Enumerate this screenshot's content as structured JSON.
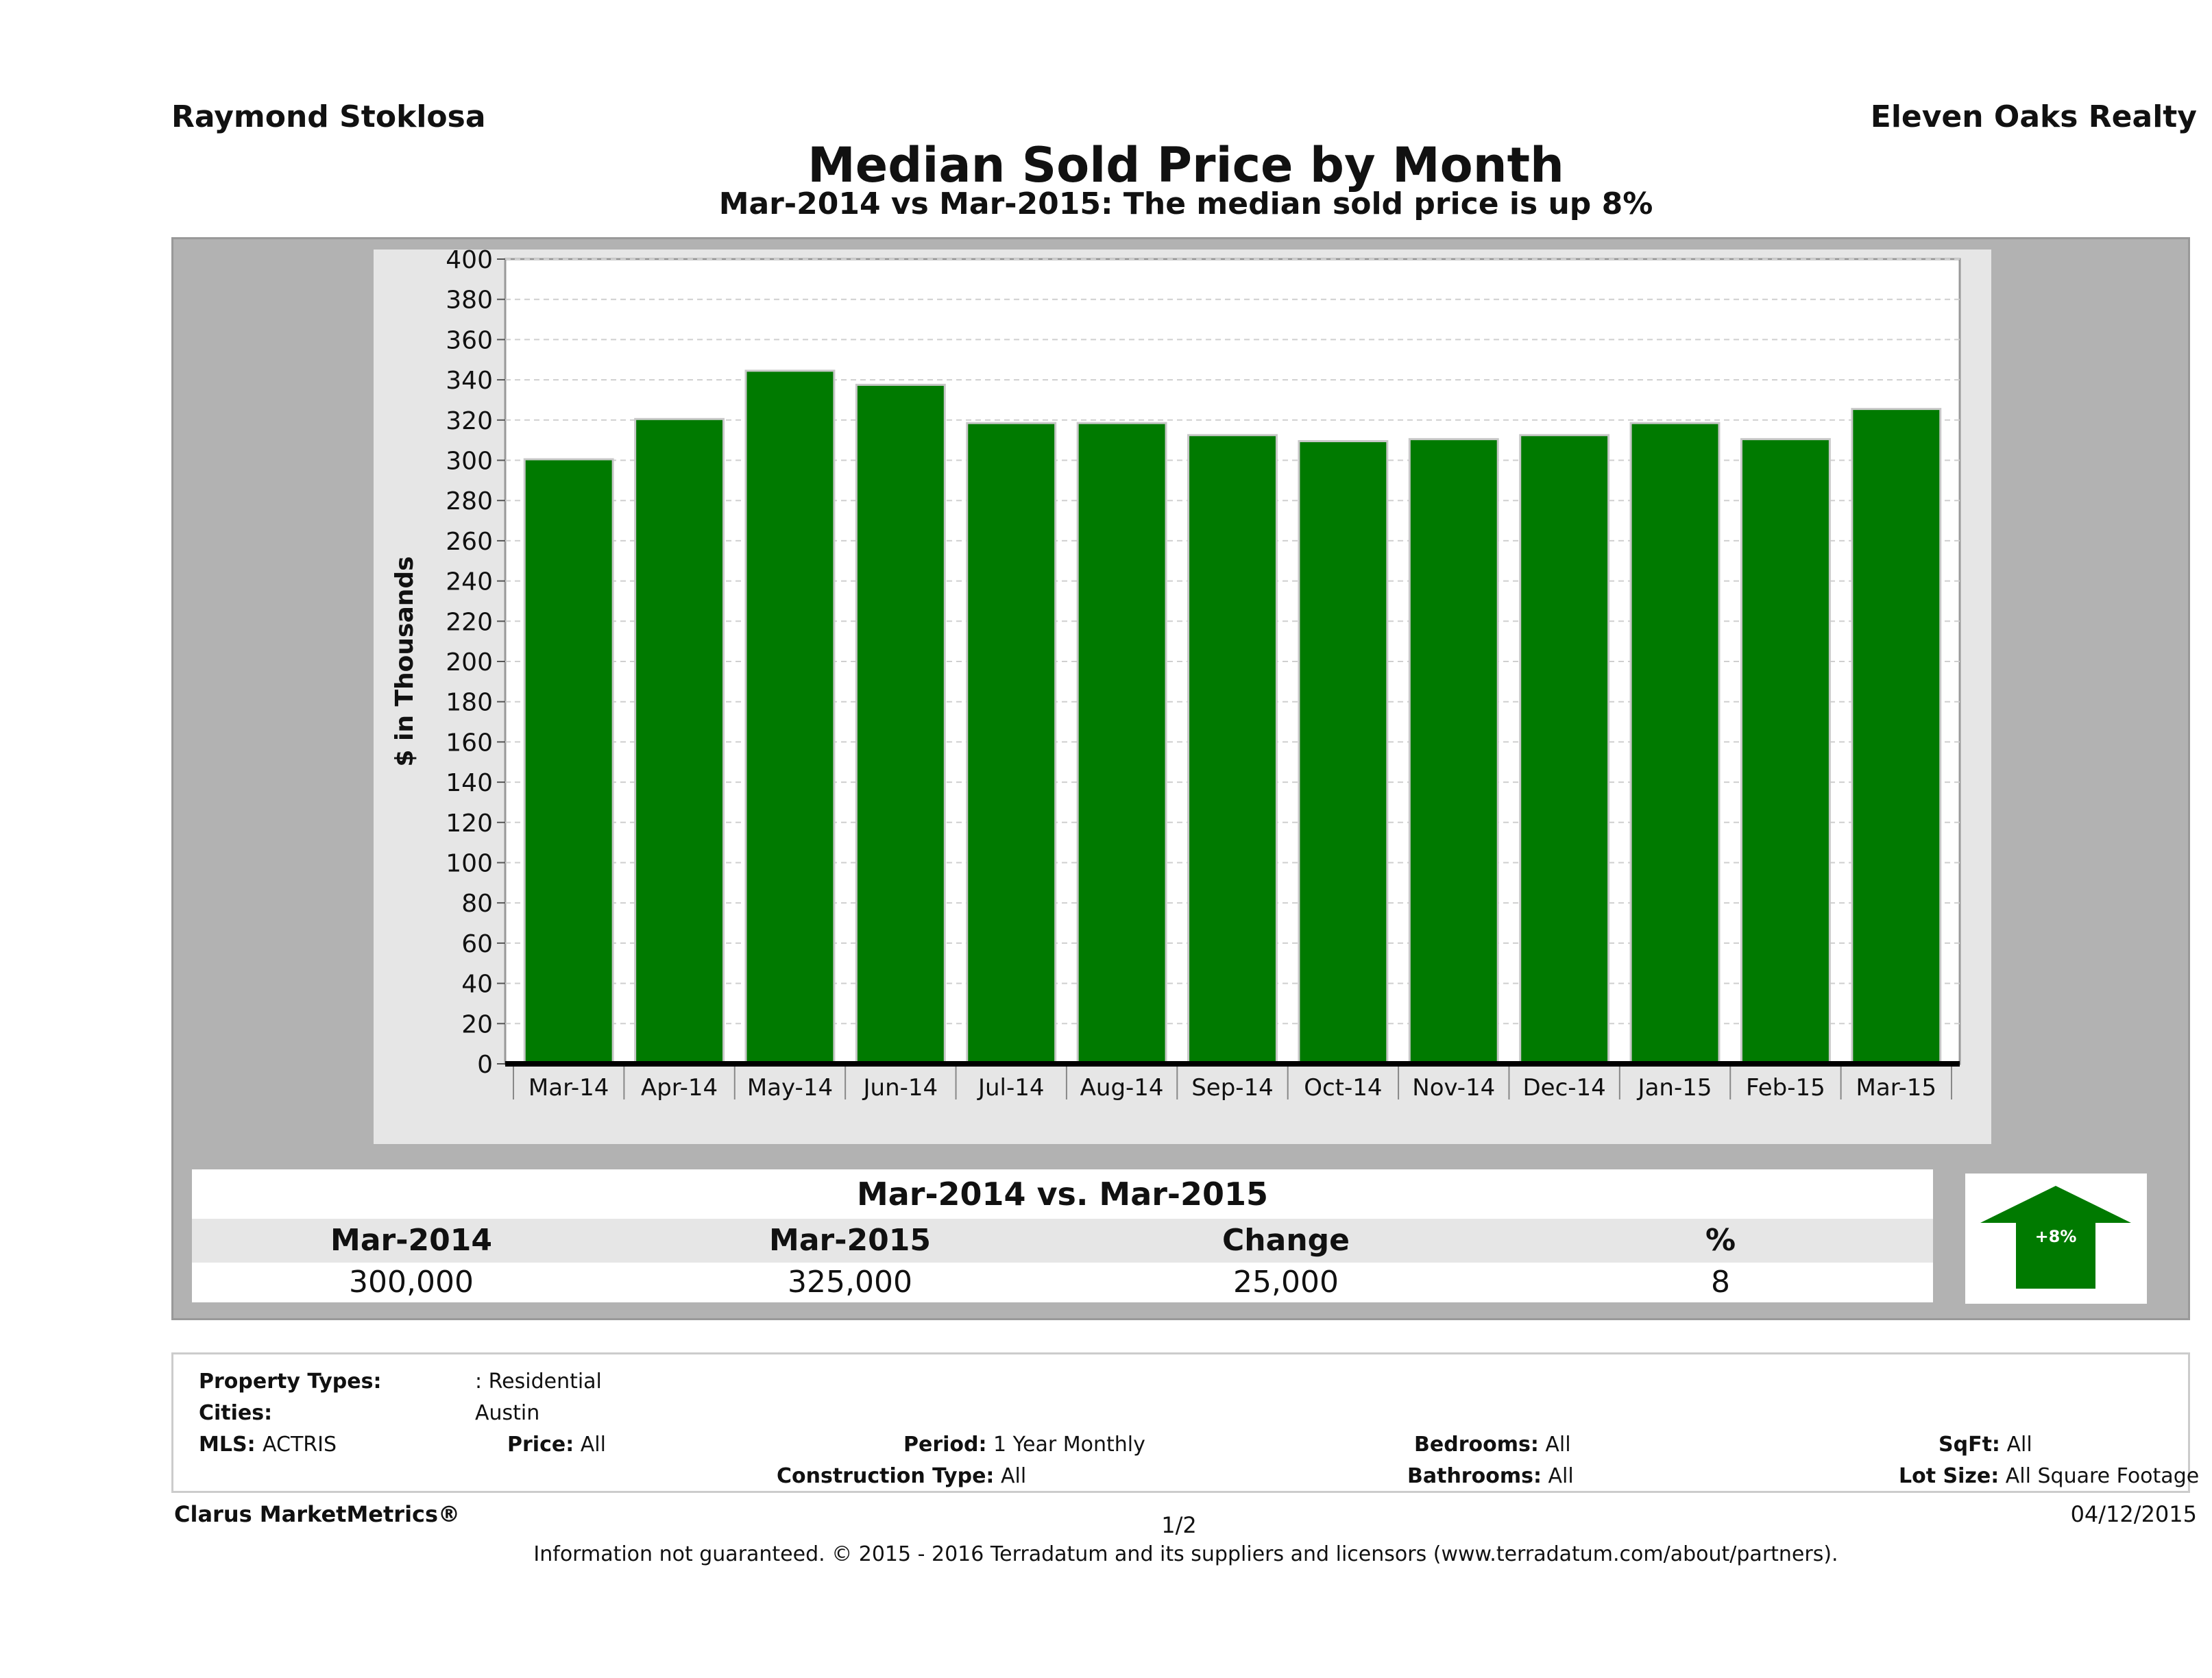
{
  "header": {
    "agent": "Raymond Stoklosa",
    "company": "Eleven Oaks Realty"
  },
  "chart_data": {
    "type": "bar",
    "title": "Median Sold Price by Month",
    "subtitle": "Mar-2014 vs Mar-2015: The median sold price is up 8%",
    "ylabel": "$ in Thousands",
    "xlabel": "",
    "categories": [
      "Mar-14",
      "Apr-14",
      "May-14",
      "Jun-14",
      "Jul-14",
      "Aug-14",
      "Sep-14",
      "Oct-14",
      "Nov-14",
      "Dec-14",
      "Jan-15",
      "Feb-15",
      "Mar-15"
    ],
    "values": [
      300,
      320,
      344,
      337,
      318,
      318,
      312,
      309,
      310,
      312,
      318,
      310,
      325
    ],
    "ylim": [
      0,
      400
    ],
    "yticks": [
      0,
      20,
      40,
      60,
      80,
      100,
      120,
      140,
      160,
      180,
      200,
      220,
      240,
      260,
      280,
      300,
      320,
      340,
      360,
      380,
      400
    ],
    "grid": true,
    "bar_color": "#007a00"
  },
  "summary": {
    "title": "Mar-2014 vs. Mar-2015",
    "headers": [
      "Mar-2014",
      "Mar-2015",
      "Change",
      "%"
    ],
    "values": [
      "300,000",
      "325,000",
      "25,000",
      "8"
    ],
    "badge": "+8%",
    "badge_icon": "up-arrow-icon",
    "badge_color": "#007a00"
  },
  "criteria": {
    "property_types_label": "Property Types:",
    "property_types_value": ": Residential",
    "cities_label": "Cities:",
    "cities_value": "Austin",
    "mls_label": "MLS:",
    "mls_value": "ACTRIS",
    "price_label": "Price:",
    "price_value": "All",
    "period_label": "Period:",
    "period_value": "1 Year Monthly",
    "bedrooms_label": "Bedrooms:",
    "bedrooms_value": "All",
    "sqft_label": "SqFt:",
    "sqft_value": "All",
    "construction_label": "Construction Type:",
    "construction_value": "All",
    "bathrooms_label": "Bathrooms:",
    "bathrooms_value": "All",
    "lot_label": "Lot Size:",
    "lot_value": "All Square Footage"
  },
  "footer": {
    "brand": "Clarus MarketMetrics®",
    "page": "1/2",
    "date": "04/12/2015",
    "note": "Information not guaranteed. © 2015 - 2016 Terradatum and its suppliers and licensors (www.terradatum.com/about/partners)."
  }
}
